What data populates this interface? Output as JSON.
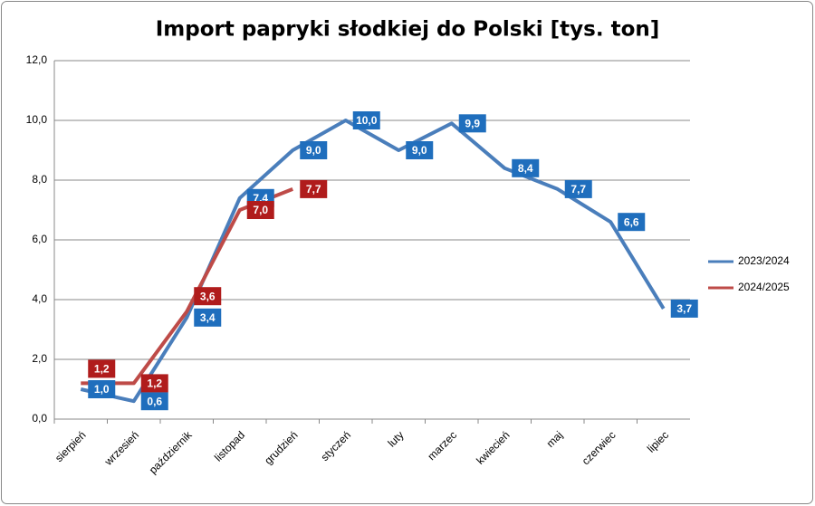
{
  "chart_data": {
    "type": "line",
    "title": "Import papryki słodkiej do Polski [tys. ton]",
    "categories": [
      "sierpień",
      "wrzesień",
      "październik",
      "listopad",
      "grudzień",
      "styczeń",
      "luty",
      "marzec",
      "kwiecień",
      "maj",
      "czerwiec",
      "lipiec"
    ],
    "series": [
      {
        "name": "2023/2024",
        "color": "#4a7ebb",
        "values": [
          1.0,
          0.6,
          3.4,
          7.4,
          9.0,
          10.0,
          9.0,
          9.9,
          8.4,
          7.7,
          6.6,
          3.7
        ],
        "value_labels": [
          "1,0",
          "0,6",
          "3,4",
          "7,4",
          "9,0",
          "10,0",
          "9,0",
          "9,9",
          "8,4",
          "7,7",
          "6,6",
          "3,7"
        ]
      },
      {
        "name": "2024/2025",
        "color": "#be4b48",
        "values": [
          1.2,
          1.2,
          3.6,
          7.0,
          7.7,
          null,
          null,
          null,
          null,
          null,
          null,
          null
        ],
        "value_labels": [
          "1,2",
          "1,2",
          "3,6",
          "7,0",
          "7,7",
          null,
          null,
          null,
          null,
          null,
          null,
          null
        ]
      }
    ],
    "ylim": [
      0,
      12
    ],
    "yticks": [
      {
        "value": 0,
        "label": "0,0"
      },
      {
        "value": 2,
        "label": "2,0"
      },
      {
        "value": 4,
        "label": "4,0"
      },
      {
        "value": 6,
        "label": "6,0"
      },
      {
        "value": 8,
        "label": "8,0"
      },
      {
        "value": 10,
        "label": "10,0"
      },
      {
        "value": 12,
        "label": "12,0"
      }
    ],
    "grid": true,
    "legend": "right"
  }
}
